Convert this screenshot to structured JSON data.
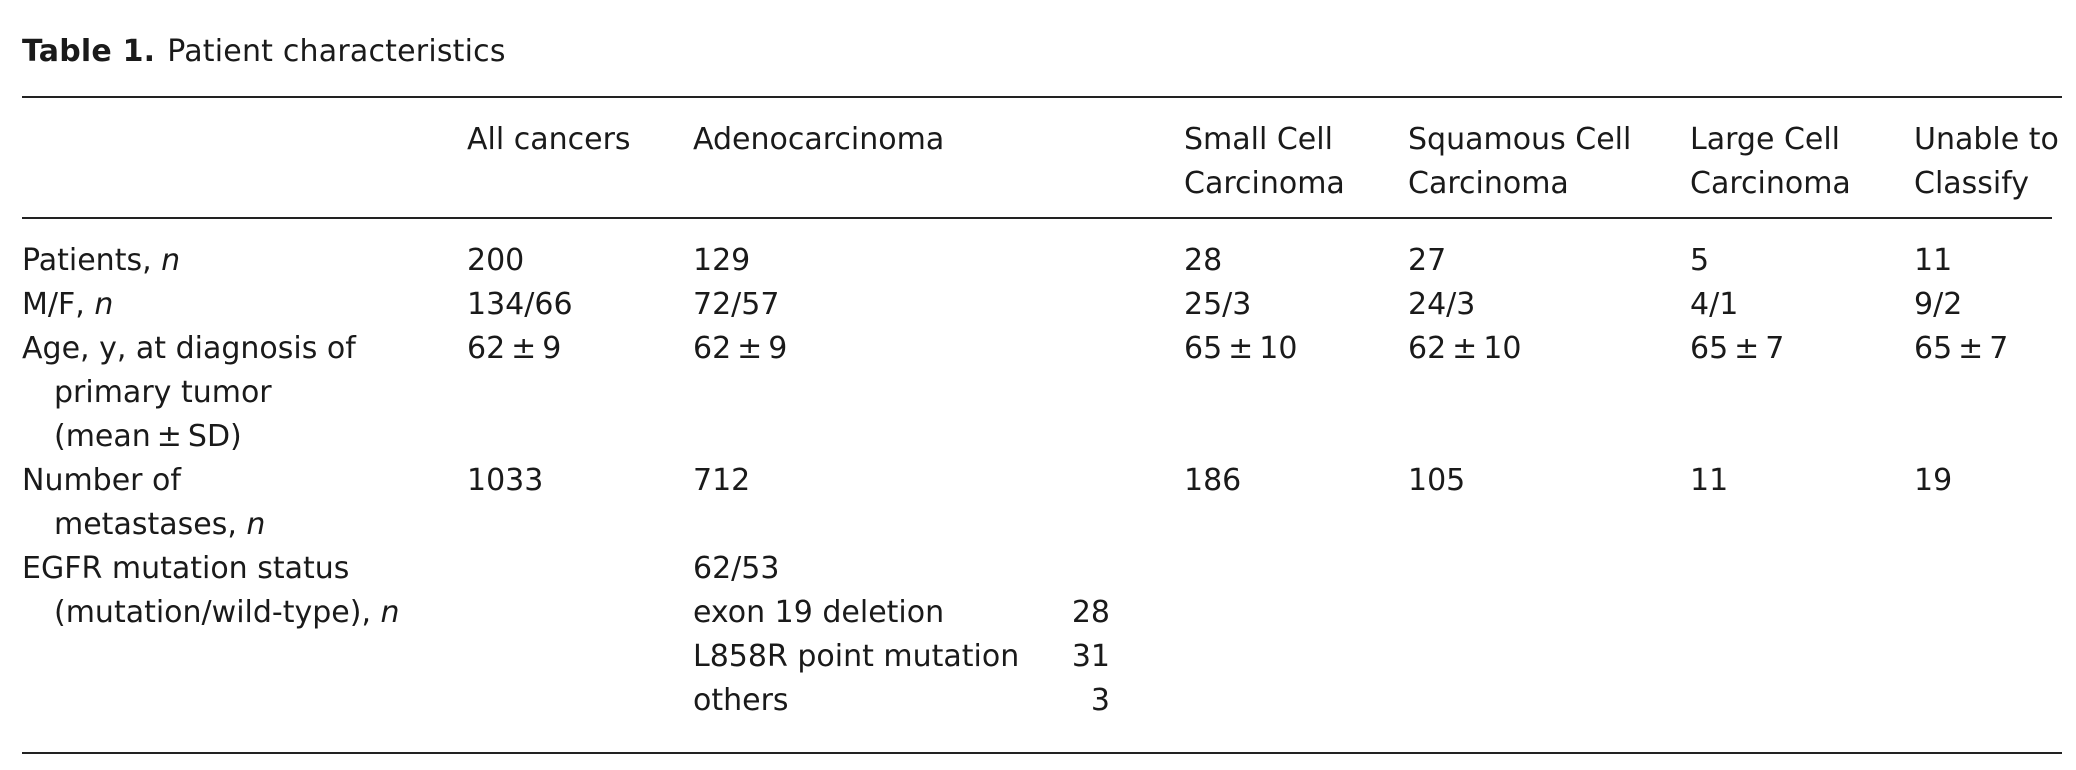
{
  "caption": {
    "label": "Table 1.",
    "title": "Patient characteristics"
  },
  "headers": [
    [
      "All cancers"
    ],
    [
      "Adenocarcinoma"
    ],
    [
      "Small Cell",
      "Carcinoma"
    ],
    [
      "Squamous Cell",
      "Carcinoma"
    ],
    [
      "Large Cell",
      "Carcinoma"
    ],
    [
      "Unable to",
      "Classify"
    ]
  ],
  "rows": {
    "patients": {
      "label": "Patients,",
      "unit": "n",
      "values": [
        "200",
        "129",
        "28",
        "27",
        "5",
        "11"
      ]
    },
    "mf": {
      "label": "M/F,",
      "unit": "n",
      "values": [
        "134/66",
        "72/57",
        "25/3",
        "24/3",
        "4/1",
        "9/2"
      ]
    },
    "age": {
      "label_lines": [
        "Age, y, at diagnosis of",
        "primary tumor",
        "(mean ± SD)"
      ],
      "values": [
        "62 ± 9",
        "62 ± 9",
        "65 ± 10",
        "62 ± 10",
        "65 ± 7",
        "65 ± 7"
      ]
    },
    "metastases": {
      "label_lines": [
        "Number of",
        "metastases,"
      ],
      "unit": "n",
      "values": [
        "1033",
        "712",
        "186",
        "105",
        "11",
        "19"
      ]
    },
    "egfr": {
      "label_lines": [
        "EGFR mutation status",
        "(mutation/wild-type),"
      ],
      "unit": "n",
      "adeno_total": "62/53",
      "subtypes": [
        {
          "name": "exon 19 deletion",
          "count": "28"
        },
        {
          "name": "L858R point mutation",
          "count": "31"
        },
        {
          "name": "others",
          "count": "3"
        }
      ]
    }
  }
}
